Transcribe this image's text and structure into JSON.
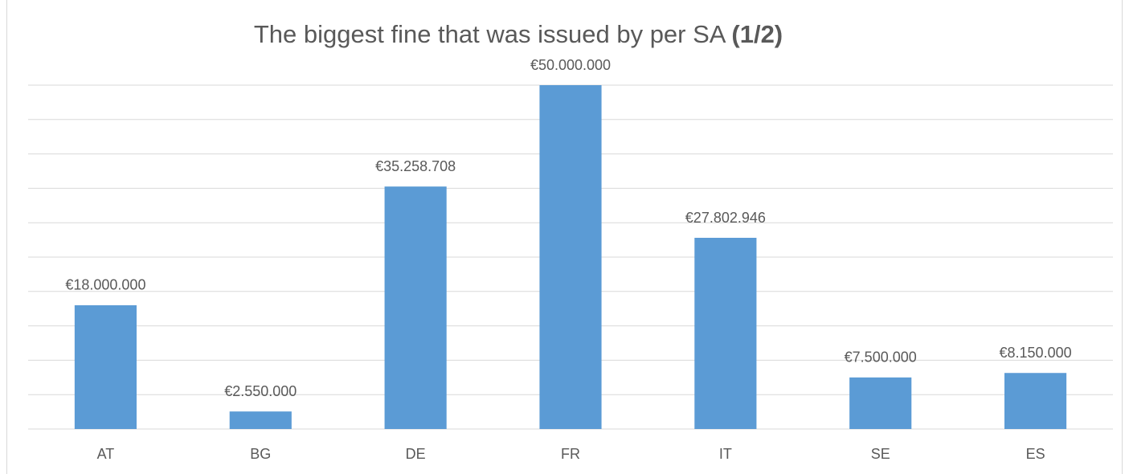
{
  "chart_data": {
    "type": "bar",
    "title": "The biggest fine that was issued by per SA",
    "title_bold": "(1/2)",
    "categories": [
      "AT",
      "BG",
      "DE",
      "FR",
      "IT",
      "SE",
      "ES"
    ],
    "values": [
      18000000,
      2550000,
      35258708,
      50000000,
      27802946,
      7500000,
      8150000
    ],
    "value_labels": [
      "€18.000.000",
      "€2.550.000",
      "€35.258.708",
      "€50.000.000",
      "€27.802.946",
      "€7.500.000",
      "€8.150.000"
    ],
    "color": "#5b9bd5",
    "ylim": [
      0,
      50000000
    ],
    "yticks": [
      0,
      5000000,
      10000000,
      15000000,
      20000000,
      25000000,
      30000000,
      35000000,
      40000000,
      45000000,
      50000000
    ],
    "grid": true
  }
}
